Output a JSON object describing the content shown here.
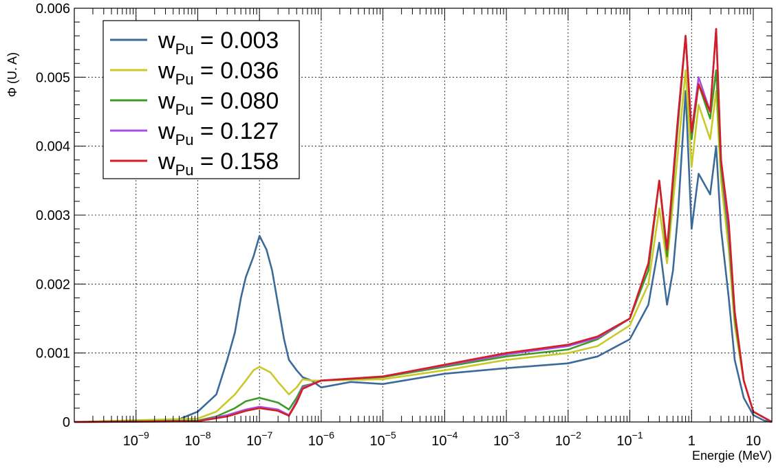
{
  "chart_data": {
    "type": "line",
    "title": "",
    "xlabel": "Energie (MeV)",
    "ylabel": "Φ (U. A)",
    "x_scale": "log",
    "xlim": [
      1e-10,
      20
    ],
    "ylim": [
      0,
      0.006
    ],
    "y_ticks": [
      "0",
      "0.001",
      "0.002",
      "0.003",
      "0.004",
      "0.005",
      "0.006"
    ],
    "x_ticks": [
      {
        "base": "10",
        "exp": "−9",
        "value": 1e-09
      },
      {
        "base": "10",
        "exp": "−8",
        "value": 1e-08
      },
      {
        "base": "10",
        "exp": "−7",
        "value": 1e-07
      },
      {
        "base": "10",
        "exp": "−6",
        "value": 1e-06
      },
      {
        "base": "10",
        "exp": "−5",
        "value": 1e-05
      },
      {
        "base": "10",
        "exp": "−4",
        "value": 0.0001
      },
      {
        "base": "10",
        "exp": "−3",
        "value": 0.001
      },
      {
        "base": "10",
        "exp": "−2",
        "value": 0.01
      },
      {
        "base": "10",
        "exp": "−1",
        "value": 0.1
      },
      {
        "base": "1",
        "exp": "",
        "value": 1
      },
      {
        "base": "10",
        "exp": "",
        "value": 10
      }
    ],
    "grid": true,
    "legend_position": "top-left",
    "series": [
      {
        "name": "w_Pu = 0.003",
        "label_main": "w",
        "label_sub": "Pu",
        "label_value": " = 0.003",
        "color": "#3b6a9a",
        "points": [
          [
            1e-10,
            0
          ],
          [
            1e-09,
            1e-05
          ],
          [
            5e-09,
            4e-05
          ],
          [
            1e-08,
            0.00015
          ],
          [
            2e-08,
            0.0004
          ],
          [
            3e-08,
            0.0009
          ],
          [
            4e-08,
            0.0013
          ],
          [
            5e-08,
            0.0018
          ],
          [
            6e-08,
            0.0021
          ],
          [
            8e-08,
            0.0024
          ],
          [
            1e-07,
            0.0027
          ],
          [
            1.3e-07,
            0.0025
          ],
          [
            1.6e-07,
            0.0022
          ],
          [
            2e-07,
            0.0017
          ],
          [
            2.5e-07,
            0.0012
          ],
          [
            3e-07,
            0.0009
          ],
          [
            4e-07,
            0.00075
          ],
          [
            5e-07,
            0.00065
          ],
          [
            7e-07,
            0.0006
          ],
          [
            1e-06,
            0.0005
          ],
          [
            3e-06,
            0.00058
          ],
          [
            1e-05,
            0.00055
          ],
          [
            0.0001,
            0.0007
          ],
          [
            0.001,
            0.00078
          ],
          [
            0.01,
            0.00085
          ],
          [
            0.03,
            0.00095
          ],
          [
            0.1,
            0.0012
          ],
          [
            0.2,
            0.0017
          ],
          [
            0.3,
            0.0026
          ],
          [
            0.4,
            0.0017
          ],
          [
            0.5,
            0.0022
          ],
          [
            0.6,
            0.003
          ],
          [
            0.8,
            0.0048
          ],
          [
            1,
            0.0028
          ],
          [
            1.3,
            0.0036
          ],
          [
            2,
            0.0033
          ],
          [
            2.5,
            0.004
          ],
          [
            3,
            0.0028
          ],
          [
            4,
            0.0018
          ],
          [
            5,
            0.0009
          ],
          [
            7,
            0.00035
          ],
          [
            10,
            0.0001
          ],
          [
            15,
            2e-05
          ],
          [
            20,
            0
          ]
        ]
      },
      {
        "name": "w_Pu = 0.036",
        "label_main": "w",
        "label_sub": "Pu",
        "label_value": " = 0.036",
        "color": "#c9c928",
        "points": [
          [
            1e-10,
            0
          ],
          [
            1e-08,
            5e-05
          ],
          [
            2e-08,
            0.00015
          ],
          [
            4e-08,
            0.0004
          ],
          [
            6e-08,
            0.0006
          ],
          [
            8e-08,
            0.00075
          ],
          [
            1e-07,
            0.0008
          ],
          [
            1.5e-07,
            0.00072
          ],
          [
            2e-07,
            0.00058
          ],
          [
            3e-07,
            0.0004
          ],
          [
            4e-07,
            0.0005
          ],
          [
            5e-07,
            0.00062
          ],
          [
            7e-07,
            0.0006
          ],
          [
            1e-06,
            0.0006
          ],
          [
            1e-05,
            0.00062
          ],
          [
            0.0001,
            0.00075
          ],
          [
            0.001,
            0.0009
          ],
          [
            0.01,
            0.001
          ],
          [
            0.03,
            0.0011
          ],
          [
            0.1,
            0.0014
          ],
          [
            0.2,
            0.002
          ],
          [
            0.3,
            0.0031
          ],
          [
            0.4,
            0.0023
          ],
          [
            0.6,
            0.0039
          ],
          [
            0.8,
            0.0051
          ],
          [
            1,
            0.0037
          ],
          [
            1.3,
            0.0046
          ],
          [
            2,
            0.0041
          ],
          [
            2.5,
            0.0048
          ],
          [
            3,
            0.0035
          ],
          [
            4,
            0.0025
          ],
          [
            5,
            0.0014
          ],
          [
            7,
            0.0006
          ],
          [
            10,
            0.00015
          ],
          [
            20,
            0
          ]
        ]
      },
      {
        "name": "w_Pu = 0.080",
        "label_main": "w",
        "label_sub": "Pu",
        "label_value": " = 0.080",
        "color": "#3e9a26",
        "points": [
          [
            1e-10,
            0
          ],
          [
            1e-08,
            2e-05
          ],
          [
            2e-08,
            8e-05
          ],
          [
            4e-08,
            0.0002
          ],
          [
            6e-08,
            0.0003
          ],
          [
            1e-07,
            0.00035
          ],
          [
            2e-07,
            0.00028
          ],
          [
            3e-07,
            0.00018
          ],
          [
            4e-07,
            0.00035
          ],
          [
            5e-07,
            0.00052
          ],
          [
            7e-07,
            0.00055
          ],
          [
            1e-06,
            0.0006
          ],
          [
            1e-05,
            0.00065
          ],
          [
            0.0001,
            0.0008
          ],
          [
            0.001,
            0.00095
          ],
          [
            0.01,
            0.00105
          ],
          [
            0.03,
            0.0012
          ],
          [
            0.1,
            0.0015
          ],
          [
            0.2,
            0.0022
          ],
          [
            0.3,
            0.0035
          ],
          [
            0.4,
            0.0024
          ],
          [
            0.6,
            0.0043
          ],
          [
            0.8,
            0.0056
          ],
          [
            1,
            0.0041
          ],
          [
            1.3,
            0.0049
          ],
          [
            2,
            0.0044
          ],
          [
            2.5,
            0.0051
          ],
          [
            3,
            0.0037
          ],
          [
            4,
            0.0027
          ],
          [
            5,
            0.0015
          ],
          [
            7,
            0.0006
          ],
          [
            10,
            0.00015
          ],
          [
            20,
            0
          ]
        ]
      },
      {
        "name": "w_Pu = 0.127",
        "label_main": "w",
        "label_sub": "Pu",
        "label_value": " = 0.127",
        "color": "#a64ee8",
        "points": [
          [
            1e-10,
            0
          ],
          [
            1e-08,
            1e-05
          ],
          [
            3e-08,
            0.0001
          ],
          [
            6e-08,
            0.00018
          ],
          [
            1e-07,
            0.00022
          ],
          [
            2e-07,
            0.00018
          ],
          [
            3e-07,
            0.0001
          ],
          [
            4e-07,
            0.0003
          ],
          [
            5e-07,
            0.0005
          ],
          [
            7e-07,
            0.00055
          ],
          [
            1e-06,
            0.0006
          ],
          [
            1e-05,
            0.00066
          ],
          [
            0.0001,
            0.00082
          ],
          [
            0.001,
            0.00098
          ],
          [
            0.01,
            0.0011
          ],
          [
            0.03,
            0.00122
          ],
          [
            0.1,
            0.0015
          ],
          [
            0.2,
            0.0023
          ],
          [
            0.3,
            0.0035
          ],
          [
            0.4,
            0.0025
          ],
          [
            0.6,
            0.0044
          ],
          [
            0.8,
            0.0056
          ],
          [
            1,
            0.0042
          ],
          [
            1.3,
            0.005
          ],
          [
            2,
            0.0045
          ],
          [
            2.5,
            0.0057
          ],
          [
            3,
            0.0038
          ],
          [
            4,
            0.0028
          ],
          [
            5,
            0.0016
          ],
          [
            7,
            0.0006
          ],
          [
            10,
            0.00015
          ],
          [
            20,
            0
          ]
        ]
      },
      {
        "name": "w_Pu = 0.158",
        "label_main": "w",
        "label_sub": "Pu",
        "label_value": " = 0.158",
        "color": "#d41d24",
        "points": [
          [
            1e-10,
            0
          ],
          [
            1e-08,
            1e-05
          ],
          [
            3e-08,
            8e-05
          ],
          [
            6e-08,
            0.00016
          ],
          [
            1e-07,
            0.0002
          ],
          [
            2e-07,
            0.00016
          ],
          [
            3e-07,
            9e-05
          ],
          [
            4e-07,
            0.00028
          ],
          [
            5e-07,
            0.00048
          ],
          [
            7e-07,
            0.00054
          ],
          [
            1e-06,
            0.0006
          ],
          [
            1e-05,
            0.00066
          ],
          [
            0.0001,
            0.00083
          ],
          [
            0.001,
            0.001
          ],
          [
            0.01,
            0.00112
          ],
          [
            0.03,
            0.00124
          ],
          [
            0.1,
            0.0015
          ],
          [
            0.2,
            0.0023
          ],
          [
            0.3,
            0.0035
          ],
          [
            0.4,
            0.0025
          ],
          [
            0.6,
            0.0044
          ],
          [
            0.8,
            0.0056
          ],
          [
            1,
            0.0042
          ],
          [
            1.3,
            0.0049
          ],
          [
            2,
            0.0045
          ],
          [
            2.5,
            0.0057
          ],
          [
            3,
            0.0038
          ],
          [
            4,
            0.0029
          ],
          [
            5,
            0.0016
          ],
          [
            7,
            0.0006
          ],
          [
            10,
            0.00015
          ],
          [
            20,
            0
          ]
        ]
      }
    ]
  }
}
